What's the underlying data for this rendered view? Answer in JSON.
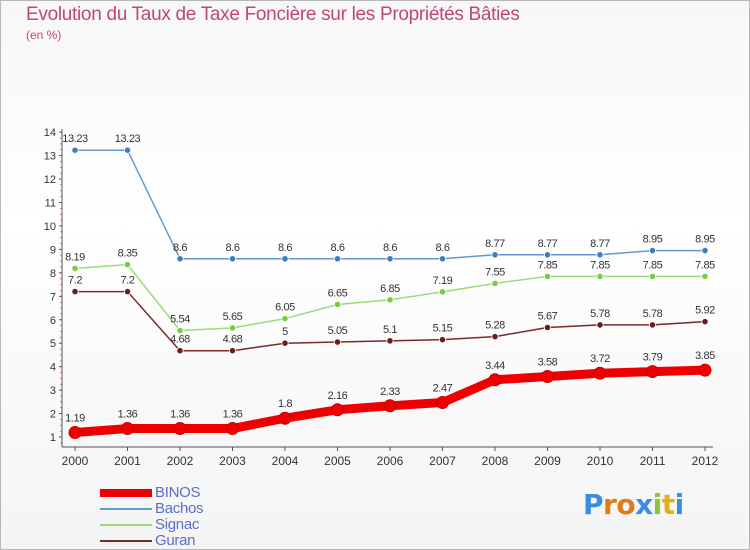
{
  "title": "Evolution du Taux de Taxe Foncière sur les Propriétés Bâties",
  "subtitle": "(en %)",
  "logo": {
    "text": "Proxiti"
  },
  "colors": {
    "title": "#c0457a",
    "axis_text": "#333333",
    "legend_text": "#5b6fc4"
  },
  "chart_data": {
    "type": "line",
    "title": "Evolution du Taux de Taxe Foncière sur les Propriétés Bâties",
    "subtitle": "(en %)",
    "xlabel": "",
    "ylabel": "",
    "x": [
      "2000",
      "2001",
      "2002",
      "2003",
      "2004",
      "2005",
      "2006",
      "2007",
      "2008",
      "2009",
      "2010",
      "2011",
      "2012"
    ],
    "ylim": [
      1,
      14
    ],
    "yticks": [
      1,
      2,
      3,
      4,
      5,
      6,
      7,
      8,
      9,
      10,
      11,
      12,
      13,
      14
    ],
    "grid": false,
    "legend_position": "bottom-left",
    "series": [
      {
        "name": "BINOS",
        "color": "#ee0000",
        "thick": true,
        "values": [
          1.19,
          1.36,
          1.36,
          1.36,
          1.8,
          2.16,
          2.33,
          2.47,
          3.44,
          3.58,
          3.72,
          3.79,
          3.85
        ],
        "labels": [
          "1.19",
          "1.36",
          "1.36",
          "1.36",
          "1.8",
          "2.16",
          "2.33",
          "2.47",
          "3.44",
          "3.58",
          "3.72",
          "3.79",
          "3.85"
        ]
      },
      {
        "name": "Bachos",
        "color": "#6699cc",
        "marker": "#3a7fc0",
        "thick": false,
        "values": [
          13.23,
          13.23,
          8.6,
          8.6,
          8.6,
          8.6,
          8.6,
          8.6,
          8.77,
          8.77,
          8.77,
          8.95,
          8.95
        ],
        "labels": [
          "13.23",
          "13.23",
          "8.6",
          "8.6",
          "8.6",
          "8.6",
          "8.6",
          "8.6",
          "8.77",
          "8.77",
          "8.77",
          "8.95",
          "8.95"
        ]
      },
      {
        "name": "Signac",
        "color": "#99dd77",
        "marker": "#77cc44",
        "thick": false,
        "values": [
          8.19,
          8.35,
          5.54,
          5.65,
          6.05,
          6.65,
          6.85,
          7.19,
          7.55,
          7.85,
          7.85,
          7.85,
          7.85
        ],
        "labels": [
          "8.19",
          "8.35",
          "5.54",
          "5.65",
          "6.05",
          "6.65",
          "6.85",
          "7.19",
          "7.55",
          "7.85",
          "7.85",
          "7.85",
          "7.85"
        ]
      },
      {
        "name": "Guran",
        "color": "#7a2a2a",
        "marker": "#6a1e1e",
        "thick": false,
        "values": [
          7.2,
          7.2,
          4.68,
          4.68,
          5,
          5.05,
          5.1,
          5.15,
          5.28,
          5.67,
          5.78,
          5.78,
          5.92
        ],
        "labels": [
          "7.2",
          "7.2",
          "4.68",
          "4.68",
          "5",
          "5.05",
          "5.1",
          "5.15",
          "5.28",
          "5.67",
          "5.78",
          "5.78",
          "5.92"
        ]
      }
    ]
  }
}
